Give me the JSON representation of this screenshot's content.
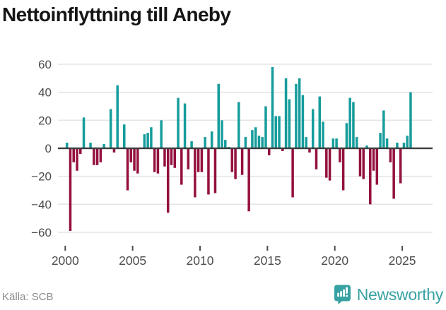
{
  "title": "Nettoinflyttning till Aneby",
  "source": "Källa: SCB",
  "branding": {
    "name": "Newsworthy"
  },
  "colors": {
    "positive": "#169c9c",
    "negative": "#94103e",
    "gridline": "#e5e5e5",
    "zero_line": "#3d3d3d",
    "axis_text": "#4d4d4d",
    "title_text": "#151515",
    "source_text": "#8a8a8a",
    "brand_teal": "#38a1a2"
  },
  "chart_data": {
    "type": "bar",
    "title": "Nettoinflyttning till Aneby",
    "x_unit": "quarter",
    "start_quarter": "2000Q1",
    "end_quarter": "2025Q3",
    "ylim": [
      -60,
      60
    ],
    "yticks": [
      60,
      40,
      20,
      0,
      -20,
      -40,
      -60
    ],
    "xticks": [
      2000,
      2005,
      2010,
      2015,
      2020,
      2025
    ],
    "grid": "horizontal",
    "legend": "none",
    "series": [
      {
        "name": "Nettoinflyttning",
        "values": [
          4,
          -59,
          -10,
          -16,
          -4,
          22,
          0,
          4,
          -12,
          -12,
          -10,
          3,
          0,
          28,
          -3,
          45,
          0,
          17,
          -30,
          -10,
          -16,
          -18,
          0,
          10,
          11,
          15,
          -17,
          -18,
          20,
          -13,
          -46,
          -12,
          -14,
          36,
          -26,
          32,
          -15,
          5,
          -35,
          -17,
          -17,
          8,
          -33,
          12,
          -32,
          46,
          20,
          6,
          1,
          -17,
          -22,
          33,
          -19,
          8,
          -45,
          13,
          15,
          9,
          8,
          30,
          -5,
          58,
          23,
          23,
          -2,
          50,
          35,
          -35,
          46,
          50,
          38,
          8,
          -3,
          28,
          -15,
          37,
          19,
          -21,
          -23,
          7,
          7,
          -10,
          -30,
          18,
          36,
          33,
          8,
          -20,
          -22,
          2,
          -40,
          -16,
          -26,
          11,
          27,
          7,
          -10,
          -36,
          4,
          -25,
          4,
          9,
          40
        ]
      }
    ]
  }
}
